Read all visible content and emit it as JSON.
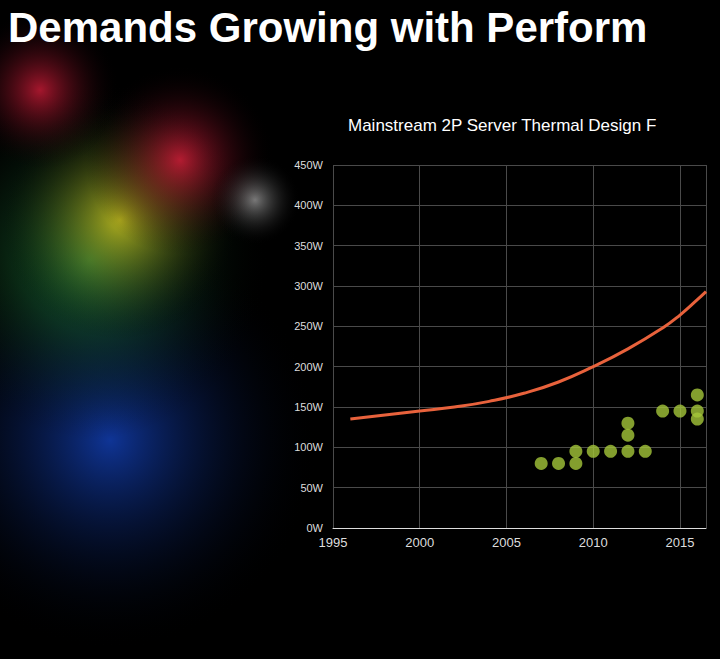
{
  "heading": "Demands Growing with Perform",
  "chart_data": {
    "type": "scatter",
    "title": "Mainstream 2P Server Thermal Design F",
    "series": [
      {
        "type": "line",
        "color": "#e8623c",
        "line_style": "solid",
        "x": [
          1996,
          1998,
          2000,
          2002,
          2004,
          2006,
          2008,
          2010,
          2012,
          2014,
          2015,
          2016,
          2016.5
        ],
        "values": [
          135,
          140,
          145,
          150,
          157,
          167,
          181,
          200,
          222,
          248,
          264,
          283,
          293
        ]
      },
      {
        "type": "scatter",
        "color": "#a4c639",
        "marker": "circle",
        "x": [
          2007,
          2008,
          2009,
          2009,
          2010,
          2011,
          2012,
          2012,
          2012,
          2013,
          2014,
          2015,
          2016,
          2016,
          2016
        ],
        "values": [
          80,
          80,
          80,
          95,
          95,
          95,
          95,
          115,
          130,
          95,
          145,
          145,
          135,
          145,
          165
        ]
      }
    ],
    "xlim": [
      1995,
      2016.5
    ],
    "xticks": [
      1995,
      2000,
      2005,
      2010,
      2015
    ],
    "ylim": [
      0,
      450
    ],
    "yticks": [
      {
        "value": 0,
        "label": "0W"
      },
      {
        "value": 50,
        "label": "50W"
      },
      {
        "value": 100,
        "label": "100W"
      },
      {
        "value": 150,
        "label": "150W"
      },
      {
        "value": 200,
        "label": "200W"
      },
      {
        "value": 250,
        "label": "250W"
      },
      {
        "value": 300,
        "label": "300W"
      },
      {
        "value": 350,
        "label": "350W"
      },
      {
        "value": 400,
        "label": "400W"
      },
      {
        "value": 450,
        "label": "450W"
      }
    ],
    "grid": true
  }
}
